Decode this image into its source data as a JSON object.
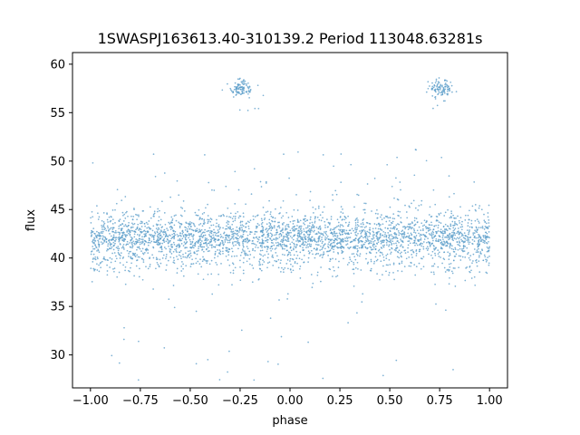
{
  "chart_data": {
    "type": "scatter",
    "title": "1SWASPJ163613.40-310139.2 Period 113048.63281s",
    "xlabel": "phase",
    "ylabel": "flux",
    "xlim": [
      -1.09,
      1.09
    ],
    "ylim": [
      26.6,
      61.2
    ],
    "xticks": [
      -1.0,
      -0.75,
      -0.5,
      -0.25,
      0.0,
      0.25,
      0.5,
      0.75,
      1.0
    ],
    "xtick_labels": [
      "−1.00",
      "−0.75",
      "−0.50",
      "−0.25",
      "0.00",
      "0.25",
      "0.50",
      "0.75",
      "1.00"
    ],
    "yticks": [
      30,
      35,
      40,
      45,
      50,
      55,
      60
    ],
    "ytick_labels": [
      "30",
      "35",
      "40",
      "45",
      "50",
      "55",
      "60"
    ],
    "grid": false,
    "legend_position": "none",
    "marker_color": "#5b9dc9",
    "marker_radius": 0.85,
    "marker_opacity": 0.8,
    "seed": 42,
    "point_components": [
      {
        "name": "core-band",
        "n": 2400,
        "x": {
          "dist": "uniform",
          "min": -1.0,
          "max": 1.0
        },
        "y": {
          "dist": "gauss",
          "mean": 42.1,
          "sd": 1.0
        }
      },
      {
        "name": "lower-band",
        "n": 350,
        "x": {
          "dist": "uniform",
          "min": -1.0,
          "max": 1.0
        },
        "y": {
          "dist": "gauss",
          "mean": 39.6,
          "sd": 0.8
        }
      },
      {
        "name": "upper-fringe",
        "n": 250,
        "x": {
          "dist": "uniform",
          "min": -1.0,
          "max": 1.0
        },
        "y": {
          "dist": "gauss",
          "mean": 44.0,
          "sd": 0.8
        }
      },
      {
        "name": "scatter-halo",
        "n": 280,
        "x": {
          "dist": "uniform",
          "min": -1.0,
          "max": 1.0
        },
        "y": {
          "dist": "gauss",
          "mean": 42.0,
          "sd": 3.2,
          "clip_min": 28.0,
          "clip_max": 51.3
        }
      },
      {
        "name": "deep-low-outliers",
        "n": 22,
        "x": {
          "dist": "uniform",
          "min": -0.95,
          "max": 0.95
        },
        "y": {
          "dist": "uniform",
          "min": 27.4,
          "max": 33.0
        }
      },
      {
        "name": "high-spikes",
        "n": 30,
        "x": {
          "dist": "uniform",
          "min": -0.95,
          "max": 0.95
        },
        "y": {
          "dist": "uniform",
          "min": 46.0,
          "max": 51.2
        }
      },
      {
        "name": "bright-cluster-1",
        "n": 95,
        "x": {
          "dist": "gauss",
          "mean": -0.245,
          "sd": 0.03
        },
        "y": {
          "dist": "gauss",
          "mean": 57.5,
          "sd": 0.4
        }
      },
      {
        "name": "bright-cluster-2",
        "n": 95,
        "x": {
          "dist": "gauss",
          "mean": 0.755,
          "sd": 0.03
        },
        "y": {
          "dist": "gauss",
          "mean": 57.5,
          "sd": 0.4
        }
      },
      {
        "name": "cluster-strays-1",
        "n": 8,
        "x": {
          "dist": "gauss",
          "mean": -0.21,
          "sd": 0.05
        },
        "y": {
          "dist": "gauss",
          "mean": 56.3,
          "sd": 0.5
        }
      },
      {
        "name": "cluster-strays-2",
        "n": 8,
        "x": {
          "dist": "gauss",
          "mean": 0.79,
          "sd": 0.05
        },
        "y": {
          "dist": "gauss",
          "mean": 56.3,
          "sd": 0.5
        }
      }
    ]
  }
}
